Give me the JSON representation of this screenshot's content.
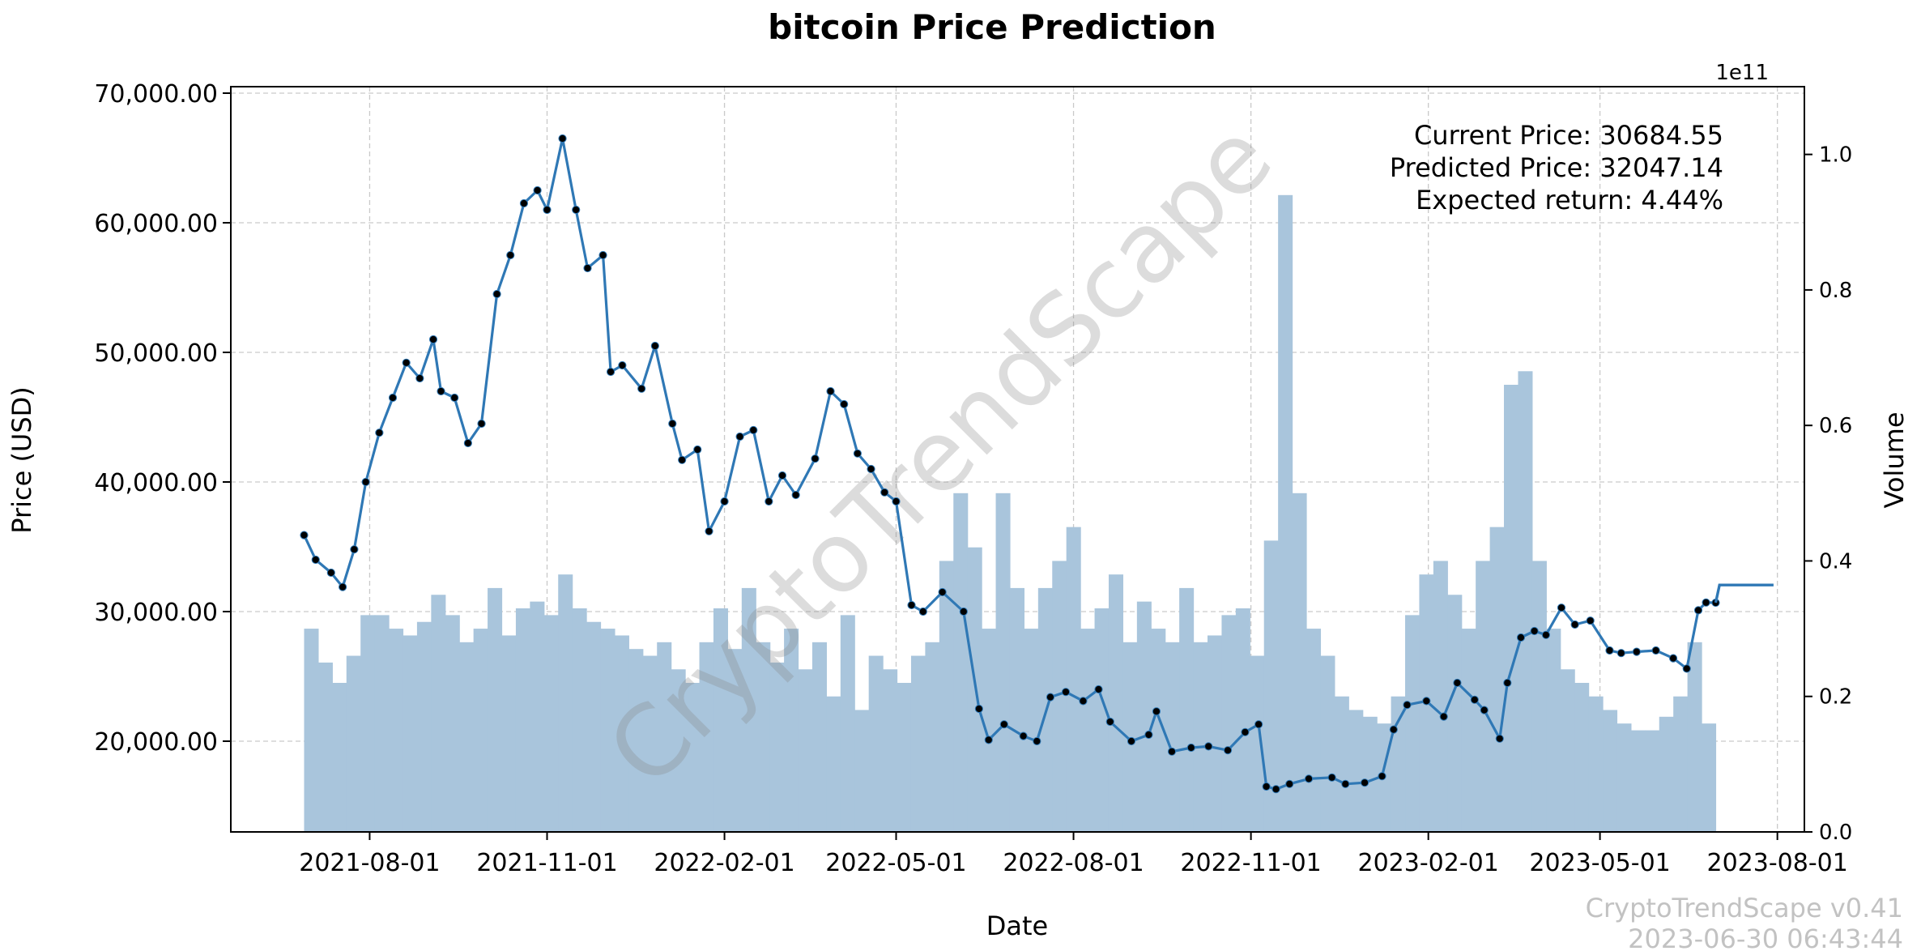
{
  "chart_data": {
    "type": "line",
    "title": "bitcoin Price Prediction",
    "xlabel": "Date",
    "ylabel": "Price (USD)",
    "y2label": "Volume",
    "y2_offset_label": "1e11",
    "ylim": [
      13000,
      70500
    ],
    "y2lim": [
      0,
      1.1
    ],
    "xlim": [
      "2021-05-21",
      "2023-08-15"
    ],
    "grid": true,
    "x_ticks": [
      "2021-08-01",
      "2021-11-01",
      "2022-02-01",
      "2022-05-01",
      "2022-08-01",
      "2022-11-01",
      "2023-02-01",
      "2023-05-01",
      "2023-08-01"
    ],
    "y_ticks": [
      "20,000.00",
      "30,000.00",
      "40,000.00",
      "50,000.00",
      "60,000.00",
      "70,000.00"
    ],
    "y_tick_values": [
      20000,
      30000,
      40000,
      50000,
      60000,
      70000
    ],
    "y2_ticks": [
      "0.0",
      "0.2",
      "0.4",
      "0.6",
      "0.8",
      "1.0"
    ],
    "y2_tick_values": [
      0,
      0.2,
      0.4,
      0.6,
      0.8,
      1.0
    ],
    "price_series": {
      "x": [
        "2021-06-28",
        "2021-07-04",
        "2021-07-12",
        "2021-07-18",
        "2021-07-24",
        "2021-07-30",
        "2021-08-06",
        "2021-08-13",
        "2021-08-20",
        "2021-08-27",
        "2021-09-03",
        "2021-09-07",
        "2021-09-14",
        "2021-09-21",
        "2021-09-28",
        "2021-10-06",
        "2021-10-13",
        "2021-10-20",
        "2021-10-27",
        "2021-11-01",
        "2021-11-09",
        "2021-11-16",
        "2021-11-22",
        "2021-11-30",
        "2021-12-04",
        "2021-12-10",
        "2021-12-20",
        "2021-12-27",
        "2022-01-05",
        "2022-01-10",
        "2022-01-18",
        "2022-01-24",
        "2022-02-01",
        "2022-02-09",
        "2022-02-16",
        "2022-02-24",
        "2022-03-03",
        "2022-03-10",
        "2022-03-20",
        "2022-03-28",
        "2022-04-04",
        "2022-04-11",
        "2022-04-18",
        "2022-04-25",
        "2022-05-01",
        "2022-05-09",
        "2022-05-15",
        "2022-05-25",
        "2022-06-05",
        "2022-06-13",
        "2022-06-18",
        "2022-06-26",
        "2022-07-06",
        "2022-07-13",
        "2022-07-20",
        "2022-07-28",
        "2022-08-06",
        "2022-08-14",
        "2022-08-20",
        "2022-08-31",
        "2022-09-09",
        "2022-09-13",
        "2022-09-21",
        "2022-10-01",
        "2022-10-10",
        "2022-10-20",
        "2022-10-29",
        "2022-11-05",
        "2022-11-09",
        "2022-11-14",
        "2022-11-21",
        "2022-12-01",
        "2022-12-13",
        "2022-12-20",
        "2022-12-30",
        "2023-01-08",
        "2023-01-14",
        "2023-01-21",
        "2023-01-31",
        "2023-02-09",
        "2023-02-16",
        "2023-02-25",
        "2023-03-02",
        "2023-03-10",
        "2023-03-14",
        "2023-03-21",
        "2023-03-28",
        "2023-04-03",
        "2023-04-11",
        "2023-04-18",
        "2023-04-26",
        "2023-05-06",
        "2023-05-12",
        "2023-05-20",
        "2023-05-30",
        "2023-06-08",
        "2023-06-15",
        "2023-06-21",
        "2023-06-25",
        "2023-06-30"
      ],
      "values": [
        35900,
        34000,
        33000,
        31900,
        34800,
        40000,
        43800,
        46500,
        49200,
        48000,
        51000,
        47000,
        46500,
        43000,
        44500,
        54500,
        57500,
        61500,
        62500,
        61000,
        66500,
        61000,
        56500,
        57500,
        48500,
        49000,
        47200,
        50500,
        44500,
        41700,
        42500,
        36200,
        38500,
        43500,
        44000,
        38500,
        40500,
        39000,
        41800,
        47000,
        46000,
        42200,
        41000,
        39200,
        38500,
        30500,
        30000,
        31500,
        30000,
        22500,
        20100,
        21300,
        20400,
        20000,
        23400,
        23800,
        23100,
        24000,
        21500,
        20000,
        20500,
        22300,
        19200,
        19500,
        19600,
        19300,
        20700,
        21300,
        16500,
        16300,
        16700,
        17100,
        17200,
        16700,
        16800,
        17300,
        20900,
        22800,
        23100,
        21900,
        24500,
        23200,
        22400,
        20200,
        24500,
        28000,
        28500,
        28200,
        30300,
        29000,
        29300,
        27000,
        26800,
        26900,
        27000,
        26400,
        25600,
        30100,
        30700,
        30684.55
      ]
    },
    "prediction_series": {
      "x": [
        "2023-06-30",
        "2023-07-02",
        "2023-07-30"
      ],
      "values": [
        30684.55,
        32047.14,
        32047.14
      ]
    },
    "volume_series": {
      "x_start": "2021-06-28",
      "x_end": "2023-06-30",
      "values_1e11": [
        0.3,
        0.25,
        0.22,
        0.26,
        0.32,
        0.32,
        0.3,
        0.29,
        0.31,
        0.35,
        0.32,
        0.28,
        0.3,
        0.36,
        0.29,
        0.33,
        0.34,
        0.32,
        0.38,
        0.33,
        0.31,
        0.3,
        0.29,
        0.27,
        0.26,
        0.28,
        0.24,
        0.22,
        0.28,
        0.33,
        0.27,
        0.36,
        0.28,
        0.25,
        0.3,
        0.24,
        0.28,
        0.2,
        0.32,
        0.18,
        0.26,
        0.24,
        0.22,
        0.26,
        0.28,
        0.4,
        0.5,
        0.42,
        0.3,
        0.5,
        0.36,
        0.3,
        0.36,
        0.4,
        0.45,
        0.3,
        0.33,
        0.38,
        0.28,
        0.34,
        0.3,
        0.28,
        0.36,
        0.28,
        0.29,
        0.32,
        0.33,
        0.26,
        0.43,
        0.94,
        0.5,
        0.3,
        0.26,
        0.2,
        0.18,
        0.17,
        0.16,
        0.2,
        0.32,
        0.38,
        0.4,
        0.35,
        0.3,
        0.4,
        0.45,
        0.66,
        0.68,
        0.4,
        0.3,
        0.24,
        0.22,
        0.2,
        0.18,
        0.16,
        0.15,
        0.15,
        0.17,
        0.2,
        0.28,
        0.16
      ]
    },
    "annotations": [
      "Current Price: 30684.55",
      "Predicted Price: 32047.14",
      "Expected return: 4.44%"
    ],
    "colors": {
      "line": "#2f78b5",
      "volume": "#a9c5dc",
      "marker": "#000000",
      "grid": "#c9c9c9"
    }
  },
  "watermark": "CryptoTrendScape",
  "footer": {
    "version": "CryptoTrendScape v0.41",
    "timestamp": "2023-06-30 06:43:44"
  }
}
